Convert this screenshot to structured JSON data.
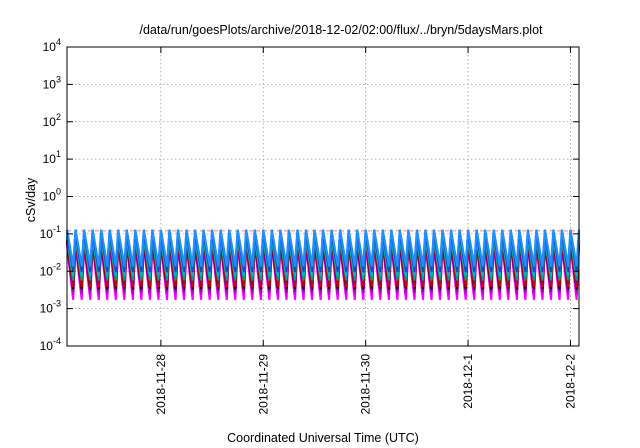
{
  "chart_data": {
    "type": "line",
    "title": "/data/run/goesPlots/archive/2018-12-02/02:00/flux/../bryn/5daysMars.plot",
    "xlabel": "Coordinated Universal Time (UTC)",
    "ylabel": "cSv/day",
    "x_range": [
      "2018-11-27T02:00",
      "2018-12-02T02:00"
    ],
    "y_scale": "log",
    "ylim": [
      0.0001,
      10000
    ],
    "y_ticks": [
      {
        "base": "10",
        "exp": "-4",
        "value": 0.0001
      },
      {
        "base": "10",
        "exp": "-3",
        "value": 0.001
      },
      {
        "base": "10",
        "exp": "-2",
        "value": 0.01
      },
      {
        "base": "10",
        "exp": "-1",
        "value": 0.1
      },
      {
        "base": "10",
        "exp": "0",
        "value": 1
      },
      {
        "base": "10",
        "exp": "1",
        "value": 10
      },
      {
        "base": "10",
        "exp": "2",
        "value": 100
      },
      {
        "base": "10",
        "exp": "3",
        "value": 1000
      },
      {
        "base": "10",
        "exp": "4",
        "value": 10000
      }
    ],
    "x_ticks": [
      {
        "label": "2018-11-28",
        "value": "2018-11-28T00:00"
      },
      {
        "label": "2018-11-29",
        "value": "2018-11-29T00:00"
      },
      {
        "label": "2018-11-30",
        "value": "2018-11-30T00:00"
      },
      {
        "label": "2018-12-1",
        "value": "2018-12-01T00:00"
      },
      {
        "label": "2018-12-2",
        "value": "2018-12-02T00:00"
      }
    ],
    "grid": true,
    "reference_line": {
      "y": 0.12,
      "color": "#ff7f7f",
      "style": "dashed"
    },
    "oscillation": {
      "period_hours": 2,
      "pattern": "sawtooth"
    },
    "series": [
      {
        "color": "#ff00ff",
        "peak": 0.05,
        "trough": 0.0018
      },
      {
        "color": "#d400d4",
        "peak": 0.055,
        "trough": 0.0025
      },
      {
        "color": "#9400d3",
        "peak": 0.06,
        "trough": 0.003
      },
      {
        "color": "#000000",
        "peak": 0.065,
        "trough": 0.0035
      },
      {
        "color": "#cc0000",
        "peak": 0.07,
        "trough": 0.004
      },
      {
        "color": "#00a08a",
        "peak": 0.08,
        "trough": 0.006
      },
      {
        "color": "#00c0c0",
        "peak": 0.09,
        "trough": 0.008
      },
      {
        "color": "#2040d0",
        "peak": 0.11,
        "trough": 0.01
      },
      {
        "color": "#1e90ff",
        "peak": 0.13,
        "trough": 0.014
      }
    ]
  }
}
